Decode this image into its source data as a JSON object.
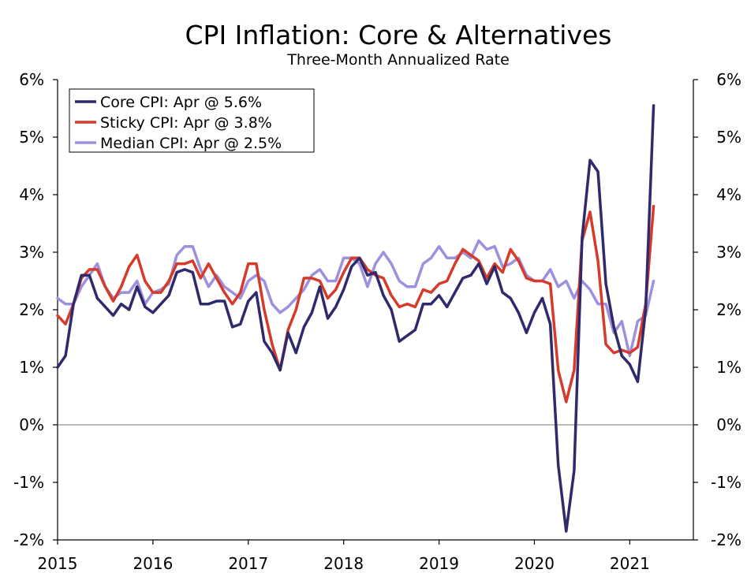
{
  "chart_data": {
    "type": "line",
    "title": "CPI Inflation: Core & Alternatives",
    "subtitle": "Three-Month Annualized Rate",
    "xlabel": "",
    "ylabel": "",
    "ylim": [
      -2,
      6
    ],
    "xlim": [
      2015.0,
      2021.667
    ],
    "yticks": [
      -2,
      -1,
      0,
      1,
      2,
      3,
      4,
      5,
      6
    ],
    "ytick_labels": [
      "-2%",
      "-1%",
      "0%",
      "1%",
      "2%",
      "3%",
      "4%",
      "5%",
      "6%"
    ],
    "ytick_labels_right": [
      "-2%",
      "-1%",
      "0%",
      "1%",
      "2%",
      "3%",
      "4%",
      "5%",
      "6%"
    ],
    "xticks": [
      2015,
      2016,
      2017,
      2018,
      2019,
      2020,
      2021
    ],
    "xtick_labels": [
      "2015",
      "2016",
      "2017",
      "2018",
      "2019",
      "2020",
      "2021"
    ],
    "zero_line": true,
    "grid": false,
    "legend_position": "top-left",
    "start": {
      "year": 2015,
      "month": 1
    },
    "series": [
      {
        "name": "Core CPI: Apr @ 5.6%",
        "color": "#2e2a6b",
        "values": [
          1.0,
          1.2,
          2.1,
          2.6,
          2.6,
          2.2,
          2.05,
          1.9,
          2.1,
          2.0,
          2.4,
          2.05,
          1.95,
          2.1,
          2.25,
          2.65,
          2.7,
          2.65,
          2.1,
          2.1,
          2.15,
          2.15,
          1.7,
          1.75,
          2.15,
          2.3,
          1.45,
          1.25,
          0.95,
          1.6,
          1.25,
          1.7,
          1.95,
          2.4,
          1.85,
          2.05,
          2.35,
          2.75,
          2.9,
          2.6,
          2.65,
          2.25,
          2.0,
          1.45,
          1.55,
          1.65,
          2.1,
          2.1,
          2.25,
          2.05,
          2.3,
          2.55,
          2.6,
          2.8,
          2.45,
          2.75,
          2.3,
          2.2,
          1.95,
          1.6,
          1.95,
          2.2,
          1.75,
          -0.7,
          -1.85,
          -0.8,
          3.25,
          4.6,
          4.4,
          2.45,
          1.7,
          1.2,
          1.05,
          0.75,
          2.0,
          5.55
        ]
      },
      {
        "name": "Sticky CPI: Apr @ 3.8%",
        "color": "#d63a2a",
        "values": [
          1.9,
          1.75,
          2.1,
          2.55,
          2.7,
          2.7,
          2.4,
          2.15,
          2.4,
          2.75,
          2.95,
          2.5,
          2.3,
          2.3,
          2.5,
          2.8,
          2.8,
          2.85,
          2.55,
          2.8,
          2.55,
          2.3,
          2.1,
          2.3,
          2.8,
          2.8,
          2.0,
          1.4,
          0.95,
          1.65,
          2.0,
          2.55,
          2.55,
          2.5,
          2.2,
          2.35,
          2.65,
          2.9,
          2.9,
          2.7,
          2.6,
          2.55,
          2.25,
          2.05,
          2.1,
          2.05,
          2.35,
          2.3,
          2.45,
          2.5,
          2.8,
          3.05,
          2.95,
          2.85,
          2.55,
          2.8,
          2.65,
          3.05,
          2.85,
          2.55,
          2.5,
          2.5,
          2.45,
          0.95,
          0.4,
          0.95,
          3.2,
          3.7,
          2.85,
          1.4,
          1.25,
          1.3,
          1.25,
          1.35,
          2.1,
          3.8
        ]
      },
      {
        "name": "Median CPI: Apr @ 2.5%",
        "color": "#9f90df",
        "values": [
          2.2,
          2.1,
          2.1,
          2.4,
          2.6,
          2.8,
          2.4,
          2.2,
          2.3,
          2.3,
          2.5,
          2.1,
          2.3,
          2.35,
          2.45,
          2.95,
          3.1,
          3.1,
          2.7,
          2.4,
          2.6,
          2.4,
          2.3,
          2.2,
          2.5,
          2.6,
          2.5,
          2.1,
          1.95,
          2.05,
          2.2,
          2.35,
          2.6,
          2.7,
          2.5,
          2.5,
          2.9,
          2.9,
          2.8,
          2.4,
          2.8,
          3.0,
          2.8,
          2.5,
          2.4,
          2.4,
          2.8,
          2.9,
          3.1,
          2.9,
          2.9,
          3.0,
          2.9,
          3.2,
          3.05,
          3.1,
          2.75,
          2.8,
          2.9,
          2.6,
          2.5,
          2.5,
          2.7,
          2.4,
          2.5,
          2.2,
          2.5,
          2.35,
          2.1,
          2.1,
          1.6,
          1.8,
          1.2,
          1.8,
          1.9,
          2.5
        ]
      }
    ]
  }
}
